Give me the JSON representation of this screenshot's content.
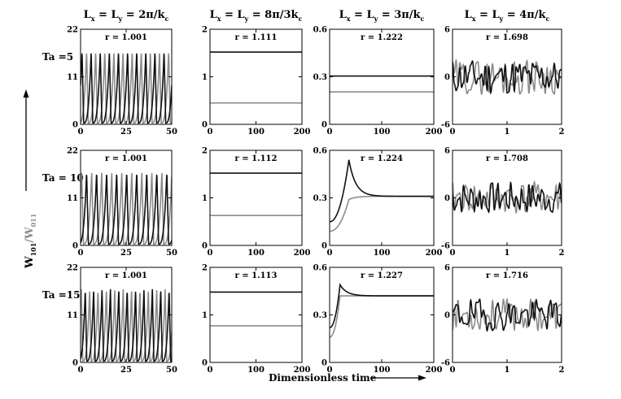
{
  "column_titles": [
    {
      "pre": "L",
      "s1": "x",
      "mid": " = L",
      "s2": "y",
      "post": " = 2π/k",
      "s3": "c"
    },
    {
      "pre": "L",
      "s1": "x",
      "mid": " = L",
      "s2": "y",
      "post": " = 8π/3k",
      "s3": "c"
    },
    {
      "pre": "L",
      "s1": "x",
      "mid": " = L",
      "s2": "y",
      "post": " = 3π/k",
      "s3": "c"
    },
    {
      "pre": "L",
      "s1": "x",
      "mid": " = L",
      "s2": "y",
      "post": " = 4π/k",
      "s3": "c"
    }
  ],
  "row_labels": [
    "Ta =5",
    "Ta = 10",
    "Ta =15"
  ],
  "ylabel": {
    "main": "W",
    "sub1": "101",
    "slash": "/W",
    "sub2": "011"
  },
  "xlabel": "Dimensionless time",
  "colors": {
    "black_series": "#111111",
    "gray_series": "#8c8c8c"
  },
  "chart_data": [
    {
      "type": "line",
      "row": 0,
      "col": 0,
      "title": "r = 1.001",
      "xlim": [
        0,
        50
      ],
      "ylim": [
        0,
        22
      ],
      "xticks": [
        0,
        25,
        50
      ],
      "yticks": [
        0,
        11,
        22
      ],
      "kind": "spikes",
      "period": 5.0,
      "phase_black": 1.7,
      "phase_gray": 4.2,
      "peak": 17,
      "trough": 0.3,
      "series": [
        {
          "name": "W101",
          "color": "black"
        },
        {
          "name": "W011",
          "color": "gray"
        }
      ]
    },
    {
      "type": "line",
      "row": 0,
      "col": 1,
      "title": "r = 1.111",
      "xlim": [
        0,
        200
      ],
      "ylim": [
        0,
        2
      ],
      "xticks": [
        0,
        100,
        200
      ],
      "yticks": [
        0,
        1,
        2
      ],
      "kind": "constant",
      "series": [
        {
          "name": "W101",
          "color": "black",
          "value": 1.52
        },
        {
          "name": "W011",
          "color": "gray",
          "value": 0.45
        }
      ]
    },
    {
      "type": "line",
      "row": 0,
      "col": 2,
      "title": "r = 1.222",
      "xlim": [
        0,
        200
      ],
      "ylim": [
        0,
        0.6
      ],
      "xticks": [
        0,
        100,
        200
      ],
      "yticks": [
        0,
        0.3,
        0.6
      ],
      "kind": "constant",
      "series": [
        {
          "name": "W101",
          "color": "black",
          "value": 0.305
        },
        {
          "name": "W011",
          "color": "gray",
          "value": 0.205
        }
      ]
    },
    {
      "type": "line",
      "row": 0,
      "col": 3,
      "title": "r = 1.698",
      "xlim": [
        0,
        2
      ],
      "ylim": [
        -6,
        6
      ],
      "xticks": [
        0,
        1,
        2
      ],
      "yticks": [
        -6,
        0,
        6
      ],
      "kind": "noise",
      "seed_black": 11,
      "seed_gray": 29,
      "amp": 2.2,
      "series": [
        {
          "name": "W101",
          "color": "black"
        },
        {
          "name": "W011",
          "color": "gray"
        }
      ]
    },
    {
      "type": "line",
      "row": 1,
      "col": 0,
      "title": "r = 1.001",
      "xlim": [
        0,
        50
      ],
      "ylim": [
        0,
        22
      ],
      "xticks": [
        0,
        25,
        50
      ],
      "yticks": [
        0,
        11,
        22
      ],
      "kind": "spikes",
      "period": 5.5,
      "phase_black": 4.3,
      "phase_gray": 1.6,
      "peak": 17,
      "trough": 0.3,
      "series": [
        {
          "name": "W101",
          "color": "black"
        },
        {
          "name": "W011",
          "color": "gray"
        }
      ]
    },
    {
      "type": "line",
      "row": 1,
      "col": 1,
      "title": "r = 1.112",
      "xlim": [
        0,
        200
      ],
      "ylim": [
        0,
        2
      ],
      "xticks": [
        0,
        100,
        200
      ],
      "yticks": [
        0,
        1,
        2
      ],
      "kind": "constant",
      "series": [
        {
          "name": "W101",
          "color": "black",
          "value": 1.52
        },
        {
          "name": "W011",
          "color": "gray",
          "value": 0.63
        }
      ]
    },
    {
      "type": "line",
      "row": 1,
      "col": 2,
      "title": "r = 1.224",
      "xlim": [
        0,
        200
      ],
      "ylim": [
        0,
        0.6
      ],
      "xticks": [
        0,
        100,
        200
      ],
      "yticks": [
        0,
        0.3,
        0.6
      ],
      "kind": "transient",
      "peak_t": 37,
      "final": 0.31,
      "series": [
        {
          "name": "W101",
          "color": "black",
          "start": 0.15,
          "peak": 0.54
        },
        {
          "name": "W011",
          "color": "gray",
          "start": 0.09,
          "peak": 0.29
        }
      ]
    },
    {
      "type": "line",
      "row": 1,
      "col": 3,
      "title": "r = 1.708",
      "xlim": [
        0,
        2
      ],
      "ylim": [
        -6,
        6
      ],
      "xticks": [
        0,
        1,
        2
      ],
      "yticks": [
        -6,
        0,
        6
      ],
      "kind": "noise",
      "seed_black": 7,
      "seed_gray": 41,
      "amp": 2.0,
      "series": [
        {
          "name": "W101",
          "color": "black"
        },
        {
          "name": "W011",
          "color": "gray"
        }
      ]
    },
    {
      "type": "line",
      "row": 2,
      "col": 0,
      "title": "r = 1.001",
      "xlim": [
        0,
        50
      ],
      "ylim": [
        0,
        22
      ],
      "xticks": [
        0,
        25,
        50
      ],
      "yticks": [
        0,
        11,
        22
      ],
      "kind": "spikes",
      "period": 4.6,
      "phase_black": 3.4,
      "phase_gray": 1.2,
      "peak": 17,
      "trough": 0.3,
      "series": [
        {
          "name": "W101",
          "color": "black"
        },
        {
          "name": "W011",
          "color": "gray"
        }
      ]
    },
    {
      "type": "line",
      "row": 2,
      "col": 1,
      "title": "r = 1.113",
      "xlim": [
        0,
        200
      ],
      "ylim": [
        0,
        2
      ],
      "xticks": [
        0,
        100,
        200
      ],
      "yticks": [
        0,
        1,
        2
      ],
      "kind": "constant",
      "series": [
        {
          "name": "W101",
          "color": "black",
          "value": 1.48
        },
        {
          "name": "W011",
          "color": "gray",
          "value": 0.77
        }
      ]
    },
    {
      "type": "line",
      "row": 2,
      "col": 2,
      "title": "r = 1.227",
      "xlim": [
        0,
        200
      ],
      "ylim": [
        0,
        0.6
      ],
      "xticks": [
        0,
        100,
        200
      ],
      "yticks": [
        0,
        0.3,
        0.6
      ],
      "kind": "transient",
      "peak_t": 20,
      "final": 0.42,
      "series": [
        {
          "name": "W101",
          "color": "black",
          "start": 0.22,
          "peak": 0.49
        },
        {
          "name": "W011",
          "color": "gray",
          "start": 0.16,
          "peak": 0.42
        }
      ]
    },
    {
      "type": "line",
      "row": 2,
      "col": 3,
      "title": "r = 1.716",
      "xlim": [
        0,
        2
      ],
      "ylim": [
        -6,
        6
      ],
      "xticks": [
        0,
        1,
        2
      ],
      "yticks": [
        -6,
        0,
        6
      ],
      "kind": "noise",
      "seed_black": 19,
      "seed_gray": 53,
      "amp": 2.0,
      "series": [
        {
          "name": "W101",
          "color": "black"
        },
        {
          "name": "W011",
          "color": "gray"
        }
      ]
    }
  ]
}
